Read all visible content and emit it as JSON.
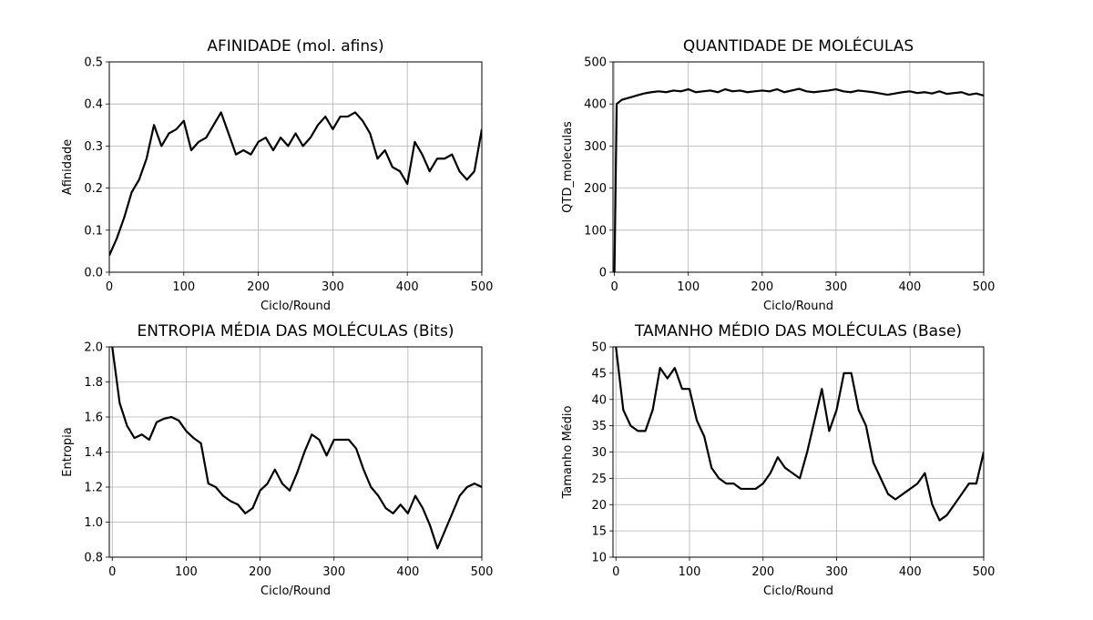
{
  "chart_data": [
    {
      "type": "line",
      "title": "AFINIDADE (mol. afins)",
      "xlabel": "Ciclo/Round",
      "ylabel": "Afinidade",
      "x": [
        0,
        10,
        20,
        30,
        40,
        50,
        60,
        70,
        80,
        90,
        100,
        110,
        120,
        130,
        140,
        150,
        160,
        170,
        180,
        190,
        200,
        210,
        220,
        230,
        240,
        250,
        260,
        270,
        280,
        290,
        300,
        310,
        320,
        330,
        340,
        350,
        360,
        370,
        380,
        390,
        400,
        410,
        420,
        430,
        440,
        450,
        460,
        470,
        480,
        490,
        500
      ],
      "values": [
        0.04,
        0.08,
        0.13,
        0.19,
        0.22,
        0.27,
        0.35,
        0.3,
        0.33,
        0.34,
        0.36,
        0.29,
        0.31,
        0.32,
        0.35,
        0.38,
        0.33,
        0.28,
        0.29,
        0.28,
        0.31,
        0.32,
        0.29,
        0.32,
        0.3,
        0.33,
        0.3,
        0.32,
        0.35,
        0.37,
        0.34,
        0.37,
        0.37,
        0.38,
        0.36,
        0.33,
        0.27,
        0.29,
        0.25,
        0.24,
        0.21,
        0.31,
        0.28,
        0.24,
        0.27,
        0.27,
        0.28,
        0.24,
        0.22,
        0.24,
        0.34
      ],
      "color": "#000000",
      "xlim": [
        0,
        500
      ],
      "ylim": [
        0,
        0.5
      ],
      "xticks": [
        0,
        100,
        200,
        300,
        400,
        500
      ],
      "yticks": [
        {
          "value": 0,
          "label": "0.0"
        },
        0.1,
        0.2,
        0.3,
        0.4,
        0.5
      ],
      "grid": true
    },
    {
      "type": "line",
      "title": "QUANTIDADE DE MOLÉCULAS",
      "xlabel": "Ciclo/Round",
      "ylabel": "QTD_moleculas",
      "x": [
        0,
        3,
        10,
        20,
        30,
        40,
        50,
        60,
        70,
        80,
        90,
        100,
        110,
        120,
        130,
        140,
        150,
        160,
        170,
        180,
        190,
        200,
        210,
        220,
        230,
        240,
        250,
        260,
        270,
        280,
        290,
        300,
        310,
        320,
        330,
        340,
        350,
        360,
        370,
        380,
        390,
        400,
        410,
        420,
        430,
        440,
        450,
        460,
        470,
        480,
        490,
        500
      ],
      "values": [
        0,
        400,
        410,
        415,
        420,
        425,
        428,
        430,
        428,
        432,
        430,
        435,
        428,
        430,
        432,
        428,
        435,
        430,
        432,
        428,
        430,
        432,
        430,
        435,
        428,
        432,
        436,
        430,
        428,
        430,
        432,
        435,
        430,
        428,
        432,
        430,
        428,
        425,
        422,
        425,
        428,
        430,
        426,
        428,
        425,
        430,
        424,
        426,
        428,
        422,
        425,
        420
      ],
      "color": "#000000",
      "xlim": [
        -2,
        500
      ],
      "ylim": [
        0,
        500
      ],
      "xticks": [
        0,
        100,
        200,
        300,
        400,
        500
      ],
      "yticks": [
        0,
        100,
        200,
        300,
        400,
        500
      ],
      "grid": true
    },
    {
      "type": "line",
      "title": "ENTROPIA MÉDIA DAS MOLÉCULAS (Bits)",
      "xlabel": "Ciclo/Round",
      "ylabel": "Entropia",
      "x": [
        0,
        10,
        20,
        30,
        40,
        50,
        60,
        70,
        80,
        90,
        100,
        110,
        120,
        130,
        140,
        150,
        160,
        170,
        180,
        190,
        200,
        210,
        220,
        230,
        240,
        250,
        260,
        270,
        280,
        290,
        300,
        310,
        320,
        330,
        340,
        350,
        360,
        370,
        380,
        390,
        400,
        410,
        420,
        430,
        440,
        450,
        460,
        470,
        480,
        490,
        500
      ],
      "values": [
        2.0,
        1.68,
        1.55,
        1.48,
        1.5,
        1.47,
        1.57,
        1.59,
        1.6,
        1.58,
        1.52,
        1.48,
        1.45,
        1.22,
        1.2,
        1.15,
        1.12,
        1.1,
        1.05,
        1.08,
        1.18,
        1.22,
        1.3,
        1.22,
        1.18,
        1.28,
        1.4,
        1.5,
        1.47,
        1.38,
        1.47,
        1.47,
        1.47,
        1.42,
        1.3,
        1.2,
        1.15,
        1.08,
        1.05,
        1.1,
        1.05,
        1.15,
        1.08,
        0.98,
        0.85,
        0.95,
        1.05,
        1.15,
        1.2,
        1.22,
        1.2
      ],
      "color": "#000000",
      "xlim": [
        -4,
        500
      ],
      "ylim": [
        0.8,
        2.0
      ],
      "xticks": [
        0,
        100,
        200,
        300,
        400,
        500
      ],
      "yticks": [
        0.8,
        {
          "value": 1,
          "label": "1.0"
        },
        1.2,
        1.4,
        1.6,
        1.8,
        {
          "value": 2,
          "label": "2.0"
        }
      ],
      "grid": true
    },
    {
      "type": "line",
      "title": "TAMANHO MÉDIO DAS MOLÉCULAS (Base)",
      "xlabel": "Ciclo/Round",
      "ylabel": "Tamanho Médio",
      "x": [
        0,
        10,
        20,
        30,
        40,
        50,
        60,
        70,
        80,
        90,
        100,
        110,
        120,
        130,
        140,
        150,
        160,
        170,
        180,
        190,
        200,
        210,
        220,
        230,
        240,
        250,
        260,
        270,
        280,
        290,
        300,
        310,
        320,
        330,
        340,
        350,
        360,
        370,
        380,
        390,
        400,
        410,
        420,
        430,
        440,
        450,
        460,
        470,
        480,
        490,
        500
      ],
      "values": [
        50,
        38,
        35,
        34,
        34,
        38,
        46,
        44,
        46,
        42,
        42,
        36,
        33,
        27,
        25,
        24,
        24,
        23,
        23,
        23,
        24,
        26,
        29,
        27,
        26,
        25,
        30,
        36,
        42,
        34,
        38,
        45,
        45,
        38,
        35,
        28,
        25,
        22,
        21,
        22,
        23,
        24,
        26,
        20,
        17,
        18,
        20,
        22,
        24,
        24,
        30
      ],
      "color": "#000000",
      "xlim": [
        -4,
        500
      ],
      "ylim": [
        10,
        50
      ],
      "xticks": [
        0,
        100,
        200,
        300,
        400,
        500
      ],
      "yticks": [
        10,
        15,
        20,
        25,
        30,
        35,
        40,
        45,
        50
      ],
      "grid": true
    }
  ]
}
